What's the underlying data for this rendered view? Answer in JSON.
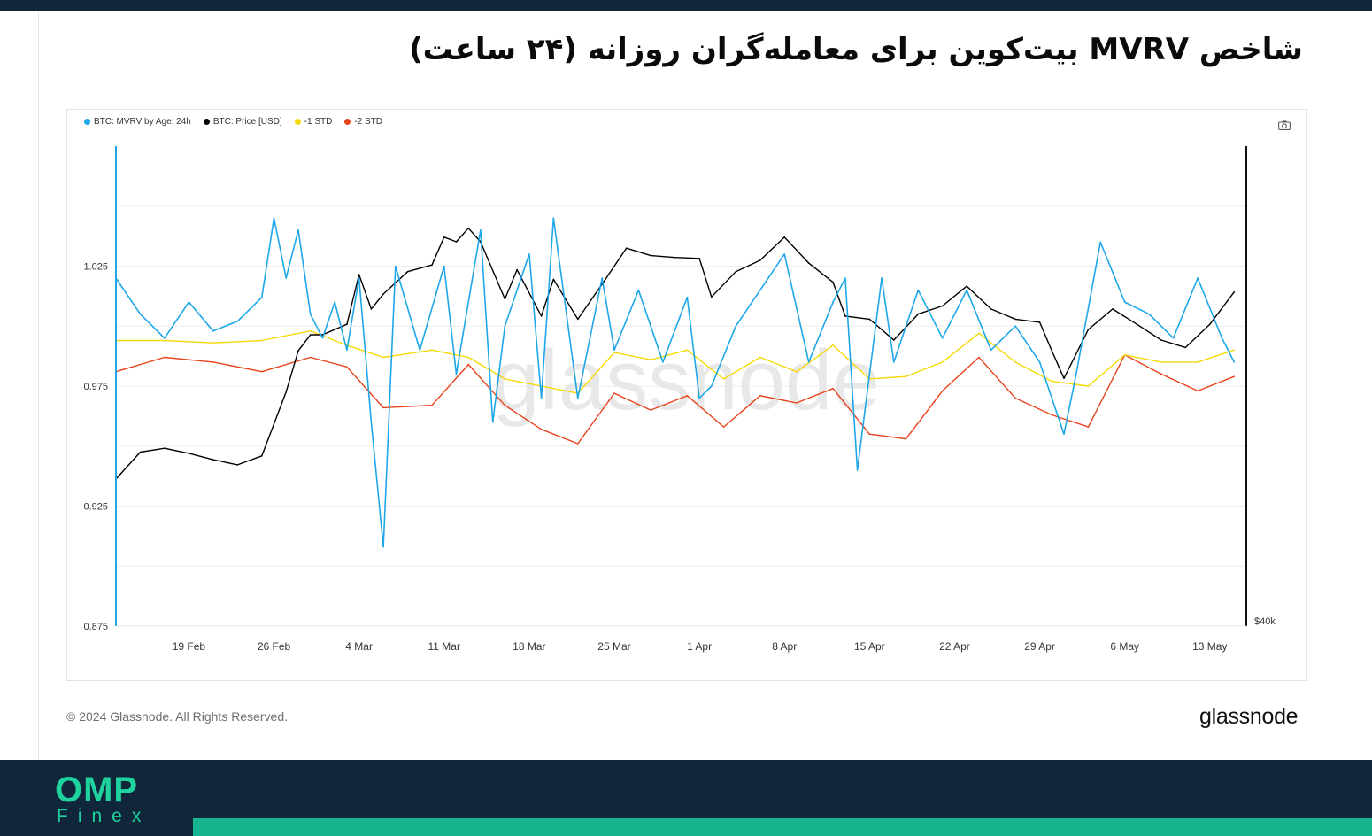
{
  "title": "شاخص MVRV بیت‌کوین برای معامله‌گران روزانه (۲۴ ساعت)",
  "copyright": "© 2024 Glassnode. All Rights Reserved.",
  "brand": "glassnode",
  "watermark": "glassnode",
  "footer_logo": {
    "main": "OMP",
    "sub": "Finex"
  },
  "colors": {
    "mvrv": "#1ea7e8",
    "price": "#000000",
    "std1": "#f5d90a",
    "std2": "#e8431c",
    "footer": "#10263a",
    "accent": "#17b58f"
  },
  "legend": [
    {
      "label": "BTC: MVRV by Age: 24h",
      "color": "#1ea7e8"
    },
    {
      "label": "BTC: Price [USD]",
      "color": "#000000"
    },
    {
      "label": "-1 STD",
      "color": "#f5d90a"
    },
    {
      "label": "-2 STD",
      "color": "#e8431c"
    }
  ],
  "icons": {
    "screenshot": "camera-icon"
  },
  "chart_data": {
    "type": "line",
    "x_axis": {
      "type": "date",
      "range": [
        "2024-02-13",
        "2024-05-16"
      ],
      "tick_labels": [
        "19 Feb",
        "26 Feb",
        "4 Mar",
        "11 Mar",
        "18 Mar",
        "25 Mar",
        "1 Apr",
        "8 Apr",
        "15 Apr",
        "22 Apr",
        "29 Apr",
        "6 May",
        "13 May"
      ]
    },
    "y_axis_left": {
      "range": [
        0.875,
        1.075
      ],
      "tick_labels": [
        "0.875",
        "0.925",
        "0.975",
        "1.025"
      ],
      "ticks": [
        0.875,
        0.925,
        0.975,
        1.025
      ]
    },
    "y_axis_right": {
      "scale": "log",
      "tick_labels": [
        "$40k"
      ]
    },
    "grid": "horizontal",
    "legend_position": "top-left",
    "series": [
      {
        "name": "BTC: MVRV by Age: 24h",
        "axis": "left",
        "x": [
          "2024-02-13",
          "2024-02-15",
          "2024-02-17",
          "2024-02-19",
          "2024-02-21",
          "2024-02-23",
          "2024-02-25",
          "2024-02-26",
          "2024-02-27",
          "2024-02-28",
          "2024-02-29",
          "2024-03-01",
          "2024-03-02",
          "2024-03-03",
          "2024-03-04",
          "2024-03-05",
          "2024-03-06",
          "2024-03-07",
          "2024-03-09",
          "2024-03-11",
          "2024-03-12",
          "2024-03-14",
          "2024-03-15",
          "2024-03-16",
          "2024-03-18",
          "2024-03-19",
          "2024-03-20",
          "2024-03-22",
          "2024-03-24",
          "2024-03-25",
          "2024-03-27",
          "2024-03-29",
          "2024-03-31",
          "2024-04-01",
          "2024-04-02",
          "2024-04-04",
          "2024-04-06",
          "2024-04-08",
          "2024-04-10",
          "2024-04-12",
          "2024-04-13",
          "2024-04-14",
          "2024-04-16",
          "2024-04-17",
          "2024-04-19",
          "2024-04-21",
          "2024-04-23",
          "2024-04-25",
          "2024-04-27",
          "2024-04-29",
          "2024-04-30",
          "2024-05-01",
          "2024-05-02",
          "2024-05-04",
          "2024-05-06",
          "2024-05-08",
          "2024-05-10",
          "2024-05-12",
          "2024-05-14",
          "2024-05-15"
        ],
        "values": [
          1.02,
          1.005,
          0.995,
          1.01,
          0.998,
          1.002,
          1.012,
          1.045,
          1.02,
          1.04,
          1.005,
          0.995,
          1.01,
          0.99,
          1.02,
          0.96,
          0.908,
          1.025,
          0.99,
          1.025,
          0.98,
          1.04,
          0.96,
          1.0,
          1.03,
          0.97,
          1.045,
          0.97,
          1.02,
          0.99,
          1.015,
          0.985,
          1.012,
          0.97,
          0.975,
          1.0,
          1.015,
          1.03,
          0.985,
          1.01,
          1.02,
          0.94,
          1.02,
          0.985,
          1.015,
          0.995,
          1.015,
          0.99,
          1.0,
          0.985,
          0.97,
          0.955,
          0.98,
          1.035,
          1.01,
          1.005,
          0.995,
          1.02,
          0.995,
          0.985
        ]
      },
      {
        "name": "BTC: Price [USD]",
        "axis": "right",
        "unit": "USD",
        "x": [
          "2024-02-13",
          "2024-02-15",
          "2024-02-17",
          "2024-02-19",
          "2024-02-21",
          "2024-02-23",
          "2024-02-25",
          "2024-02-27",
          "2024-02-28",
          "2024-02-29",
          "2024-03-01",
          "2024-03-03",
          "2024-03-04",
          "2024-03-05",
          "2024-03-06",
          "2024-03-08",
          "2024-03-10",
          "2024-03-11",
          "2024-03-12",
          "2024-03-13",
          "2024-03-14",
          "2024-03-16",
          "2024-03-17",
          "2024-03-19",
          "2024-03-20",
          "2024-03-22",
          "2024-03-24",
          "2024-03-26",
          "2024-03-28",
          "2024-03-30",
          "2024-04-01",
          "2024-04-02",
          "2024-04-04",
          "2024-04-06",
          "2024-04-08",
          "2024-04-10",
          "2024-04-12",
          "2024-04-13",
          "2024-04-15",
          "2024-04-17",
          "2024-04-19",
          "2024-04-21",
          "2024-04-23",
          "2024-04-25",
          "2024-04-27",
          "2024-04-29",
          "2024-04-30",
          "2024-05-01",
          "2024-05-03",
          "2024-05-05",
          "2024-05-07",
          "2024-05-09",
          "2024-05-11",
          "2024-05-13",
          "2024-05-15"
        ],
        "values": [
          49700,
          51800,
          52100,
          51700,
          51200,
          50800,
          51500,
          56800,
          60500,
          62000,
          62000,
          63000,
          68000,
          64500,
          66000,
          68300,
          69000,
          72000,
          71500,
          73000,
          71500,
          65500,
          68500,
          63800,
          67500,
          63500,
          67000,
          70800,
          70000,
          69800,
          69700,
          65700,
          68300,
          69500,
          72000,
          69200,
          67200,
          63800,
          63500,
          61500,
          64000,
          64800,
          66800,
          64500,
          63500,
          63200,
          60500,
          58000,
          62500,
          64500,
          63000,
          61500,
          60800,
          63000,
          66200
        ]
      },
      {
        "name": "-1 STD",
        "axis": "left",
        "x": [
          "2024-02-13",
          "2024-02-17",
          "2024-02-21",
          "2024-02-25",
          "2024-02-29",
          "2024-03-03",
          "2024-03-06",
          "2024-03-10",
          "2024-03-13",
          "2024-03-16",
          "2024-03-19",
          "2024-03-22",
          "2024-03-25",
          "2024-03-28",
          "2024-03-31",
          "2024-04-03",
          "2024-04-06",
          "2024-04-09",
          "2024-04-12",
          "2024-04-15",
          "2024-04-18",
          "2024-04-21",
          "2024-04-24",
          "2024-04-27",
          "2024-04-30",
          "2024-05-03",
          "2024-05-06",
          "2024-05-09",
          "2024-05-12",
          "2024-05-15"
        ],
        "values": [
          0.994,
          0.994,
          0.993,
          0.994,
          0.998,
          0.992,
          0.987,
          0.99,
          0.987,
          0.978,
          0.975,
          0.972,
          0.989,
          0.986,
          0.99,
          0.978,
          0.987,
          0.981,
          0.992,
          0.978,
          0.979,
          0.985,
          0.997,
          0.985,
          0.977,
          0.975,
          0.988,
          0.985,
          0.985,
          0.99
        ]
      },
      {
        "name": "-2 STD",
        "axis": "left",
        "x": [
          "2024-02-13",
          "2024-02-17",
          "2024-02-21",
          "2024-02-25",
          "2024-02-29",
          "2024-03-03",
          "2024-03-06",
          "2024-03-10",
          "2024-03-13",
          "2024-03-16",
          "2024-03-19",
          "2024-03-22",
          "2024-03-25",
          "2024-03-28",
          "2024-03-31",
          "2024-04-03",
          "2024-04-06",
          "2024-04-09",
          "2024-04-12",
          "2024-04-15",
          "2024-04-18",
          "2024-04-21",
          "2024-04-24",
          "2024-04-27",
          "2024-04-30",
          "2024-05-03",
          "2024-05-06",
          "2024-05-09",
          "2024-05-12",
          "2024-05-15"
        ],
        "values": [
          0.981,
          0.987,
          0.985,
          0.981,
          0.987,
          0.983,
          0.966,
          0.967,
          0.984,
          0.967,
          0.957,
          0.951,
          0.972,
          0.965,
          0.971,
          0.958,
          0.971,
          0.968,
          0.974,
          0.955,
          0.953,
          0.973,
          0.987,
          0.97,
          0.963,
          0.958,
          0.988,
          0.98,
          0.973,
          0.979
        ]
      }
    ]
  }
}
